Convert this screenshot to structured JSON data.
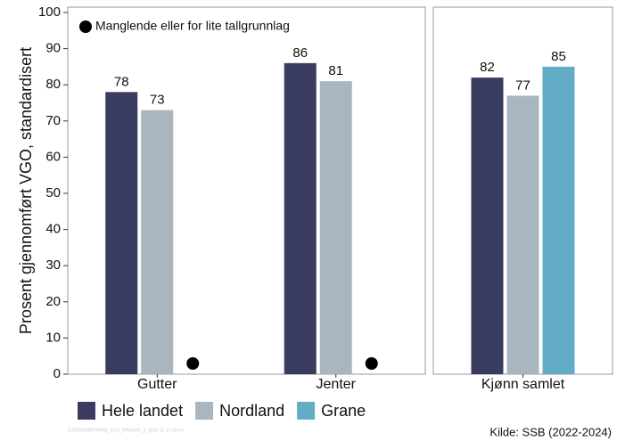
{
  "chart_data": [
    {
      "type": "bar",
      "y_label": "Prosent gjennomført VGO, standardisert",
      "annotation": "Manglende eller for lite tallgrunnlag",
      "categories": [
        "Gutter",
        "Jenter"
      ],
      "series": [
        {
          "name": "Hele landet",
          "color": "#3a3b60",
          "values": [
            78,
            86
          ]
        },
        {
          "name": "Nordland",
          "color": "#a9b6bf",
          "values": [
            73,
            81
          ]
        },
        {
          "name": "Grane",
          "color": "#62acc6",
          "values": [
            null,
            null
          ]
        }
      ],
      "ylim": [
        0,
        100
      ],
      "yticks": [
        0,
        10,
        20,
        30,
        40,
        50,
        60,
        70,
        80,
        90,
        100
      ],
      "source": "Kilde: SSB (2022-2024)",
      "footer_id": "GJENNOMFORING_VGS_INNVKAT_3_2025-11-17-18-54"
    },
    {
      "type": "bar",
      "categories": [
        "Kjønn samlet"
      ],
      "series": [
        {
          "color": "#3a3b60",
          "values": [
            82
          ]
        },
        {
          "color": "#a9b6bf",
          "values": [
            77
          ]
        },
        {
          "color": "#62acc6",
          "values": [
            85
          ]
        }
      ],
      "ylim": [
        0,
        100
      ]
    }
  ]
}
